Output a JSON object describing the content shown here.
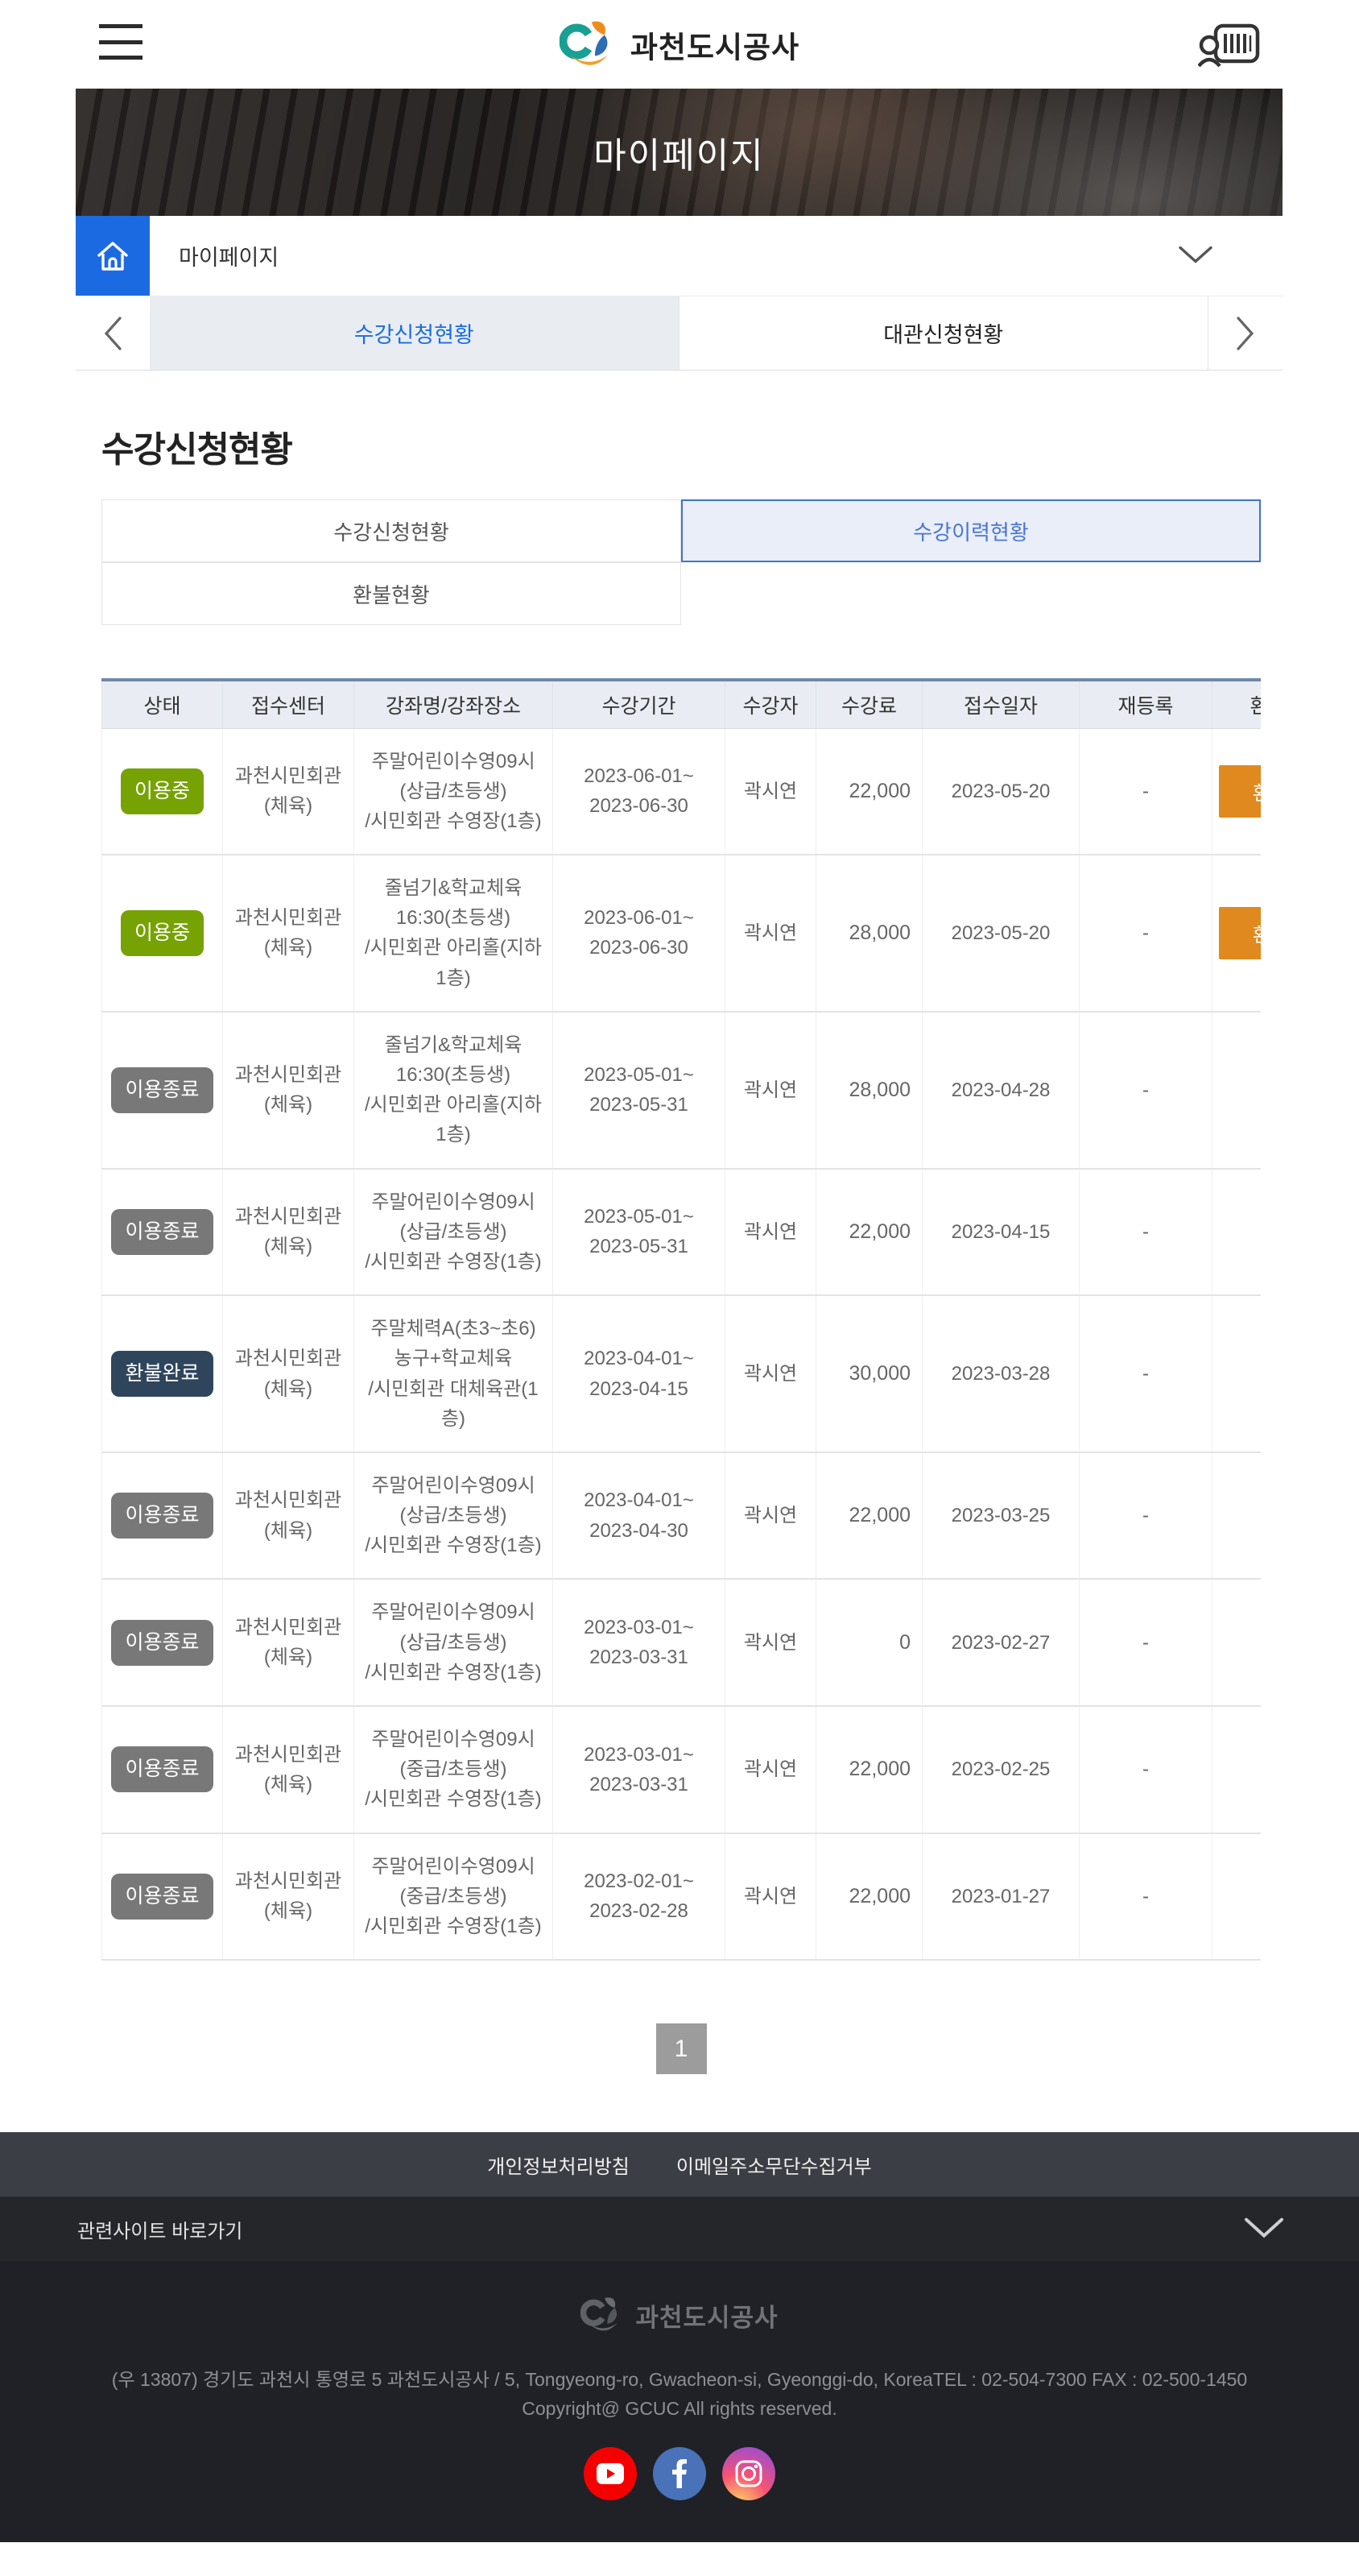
{
  "header": {
    "site_name": "과천도시공사",
    "icons": {
      "menu": "hamburger-icon",
      "member_card": "member-card-barcode-icon"
    }
  },
  "banner": {
    "title": "마이페이지"
  },
  "breadcrumb": {
    "label": "마이페이지"
  },
  "top_tabs": {
    "prev_arrow": "‹",
    "next_arrow": "›",
    "items": [
      {
        "label": "수강신청현황",
        "active": true
      },
      {
        "label": "대관신청현황",
        "active": false
      }
    ]
  },
  "page": {
    "title": "수강신청현황"
  },
  "sub_tabs": [
    {
      "label": "수강신청현황",
      "selected": false
    },
    {
      "label": "수강이력현황",
      "selected": true
    },
    {
      "label": "환불현황",
      "selected": false
    }
  ],
  "table": {
    "columns": [
      "상태",
      "접수센터",
      "강좌명/강좌장소",
      "수강기간",
      "수강자",
      "수강료",
      "접수일자",
      "재등록",
      "환불"
    ],
    "rows": [
      {
        "status": "이용중",
        "status_style": "active",
        "center": "과천시민회관(체육)",
        "course": "주말어린이수영09시(상급/초등생)",
        "location": "/시민회관 수영장(1층)",
        "period": "2023-06-01~\n2023-06-30",
        "student": "곽시연",
        "fee": "22,000",
        "reg_date": "2023-05-20",
        "renew": "-",
        "refund_button": "환불"
      },
      {
        "status": "이용중",
        "status_style": "active",
        "center": "과천시민회관(체육)",
        "course": "줄넘기&학교체육16:30(초등생)",
        "location": "/시민회관 아리홀(지하1층)",
        "period": "2023-06-01~\n2023-06-30",
        "student": "곽시연",
        "fee": "28,000",
        "reg_date": "2023-05-20",
        "renew": "-",
        "refund_button": "환불"
      },
      {
        "status": "이용종료",
        "status_style": "ended",
        "center": "과천시민회관(체육)",
        "course": "줄넘기&학교체육16:30(초등생)",
        "location": "/시민회관 아리홀(지하1층)",
        "period": "2023-05-01~\n2023-05-31",
        "student": "곽시연",
        "fee": "28,000",
        "reg_date": "2023-04-28",
        "renew": "-",
        "refund_button": null
      },
      {
        "status": "이용종료",
        "status_style": "ended",
        "center": "과천시민회관(체육)",
        "course": "주말어린이수영09시(상급/초등생)",
        "location": "/시민회관 수영장(1층)",
        "period": "2023-05-01~\n2023-05-31",
        "student": "곽시연",
        "fee": "22,000",
        "reg_date": "2023-04-15",
        "renew": "-",
        "refund_button": null
      },
      {
        "status": "환불완료",
        "status_style": "refunded",
        "center": "과천시민회관(체육)",
        "course": "주말체력A(초3~초6) 농구+학교체육",
        "location": "/시민회관 대체육관(1층)",
        "period": "2023-04-01~\n2023-04-15",
        "student": "곽시연",
        "fee": "30,000",
        "reg_date": "2023-03-28",
        "renew": "-",
        "refund_button": null
      },
      {
        "status": "이용종료",
        "status_style": "ended",
        "center": "과천시민회관(체육)",
        "course": "주말어린이수영09시(상급/초등생)",
        "location": "/시민회관 수영장(1층)",
        "period": "2023-04-01~\n2023-04-30",
        "student": "곽시연",
        "fee": "22,000",
        "reg_date": "2023-03-25",
        "renew": "-",
        "refund_button": null
      },
      {
        "status": "이용종료",
        "status_style": "ended",
        "center": "과천시민회관(체육)",
        "course": "주말어린이수영09시(상급/초등생)",
        "location": "/시민회관 수영장(1층)",
        "period": "2023-03-01~\n2023-03-31",
        "student": "곽시연",
        "fee": "0",
        "reg_date": "2023-02-27",
        "renew": "-",
        "refund_button": null
      },
      {
        "status": "이용종료",
        "status_style": "ended",
        "center": "과천시민회관(체육)",
        "course": "주말어린이수영09시(중급/초등생)",
        "location": "/시민회관 수영장(1층)",
        "period": "2023-03-01~\n2023-03-31",
        "student": "곽시연",
        "fee": "22,000",
        "reg_date": "2023-02-25",
        "renew": "-",
        "refund_button": null
      },
      {
        "status": "이용종료",
        "status_style": "ended",
        "center": "과천시민회관(체육)",
        "course": "주말어린이수영09시(중급/초등생)",
        "location": "/시민회관 수영장(1층)",
        "period": "2023-02-01~\n2023-02-28",
        "student": "곽시연",
        "fee": "22,000",
        "reg_date": "2023-01-27",
        "renew": "-",
        "refund_button": null
      }
    ]
  },
  "pagination": {
    "current": "1"
  },
  "footer": {
    "links": [
      "개인정보처리방침",
      "이메일주소무단수집거부"
    ],
    "related_sites_label": "관련사이트 바로가기",
    "logo_text": "과천도시공사",
    "address": "(우 13807) 경기도 과천시 통영로 5 과천도시공사 / 5, Tongyeong-ro, Gwacheon-si, Gyeonggi-do, KoreaTEL : 02-504-7300 FAX : 02-500-1450",
    "copyright": "Copyright@ GCUC All rights reserved.",
    "sns": [
      "youtube-icon",
      "facebook-icon",
      "instagram-icon"
    ]
  },
  "colors": {
    "accent_blue": "#1c6ae2",
    "subtab_blue": "#3f74c5",
    "table_top_border": "#7187ab",
    "badge_active": "#76a203",
    "badge_ended": "#787878",
    "badge_refunded": "#2f455c",
    "refund_orange": "#e0891e",
    "pagination_gray": "#9c9c9c"
  }
}
